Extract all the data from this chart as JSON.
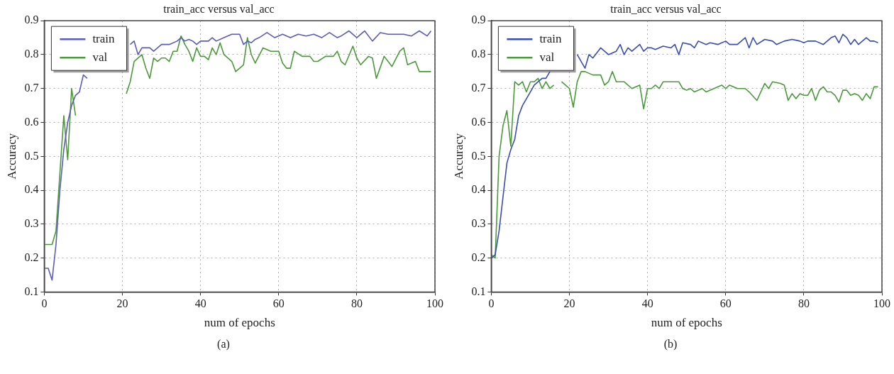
{
  "chart_data": [
    {
      "type": "line",
      "title": "train_acc versus val_acc",
      "xlabel": "num of epochs",
      "ylabel": "Accuracy",
      "xlim": [
        0,
        100
      ],
      "xticks": [
        0,
        20,
        40,
        60,
        80,
        100
      ],
      "ylim": [
        0.1,
        0.9
      ],
      "yticks": [
        0.1,
        0.2,
        0.3,
        0.4,
        0.5,
        0.6,
        0.7,
        0.8,
        0.9
      ],
      "grid": true,
      "legend": "top left",
      "line_style": "solid",
      "annotations": [
        "(a)"
      ],
      "series": [
        {
          "name": "train",
          "color": "#5b5bb8",
          "x": [
            0,
            1,
            2,
            3,
            4,
            5,
            6,
            7,
            8,
            9,
            10,
            11,
            12,
            13,
            14,
            15,
            16,
            17,
            18,
            20,
            22,
            23,
            24,
            25,
            27,
            28,
            30,
            32,
            34,
            35,
            36,
            37,
            38,
            39,
            40,
            42,
            43,
            44,
            46,
            48,
            50,
            51,
            52,
            53,
            54,
            55,
            57,
            59,
            61,
            63,
            65,
            67,
            69,
            71,
            73,
            75,
            76,
            78,
            80,
            82,
            84,
            86,
            88,
            90,
            92,
            94,
            96,
            98,
            99
          ],
          "values": [
            0.17,
            0.17,
            0.135,
            0.24,
            0.4,
            0.52,
            0.6,
            0.65,
            0.68,
            0.69,
            0.74,
            0.73,
            null,
            null,
            null,
            null,
            null,
            null,
            null,
            null,
            0.83,
            0.84,
            0.8,
            0.82,
            0.82,
            0.81,
            0.83,
            0.83,
            0.84,
            0.85,
            0.84,
            0.845,
            0.84,
            0.83,
            0.84,
            0.84,
            0.85,
            0.84,
            0.85,
            0.86,
            0.86,
            0.83,
            0.84,
            0.835,
            0.845,
            0.85,
            0.865,
            0.85,
            0.86,
            0.85,
            0.86,
            0.855,
            0.86,
            0.85,
            0.865,
            0.85,
            0.855,
            0.87,
            0.85,
            0.87,
            0.84,
            0.865,
            0.86,
            0.86,
            0.86,
            0.855,
            0.87,
            0.855,
            0.87
          ]
        },
        {
          "name": "val",
          "color": "#4a9a3a",
          "x": [
            0,
            2,
            3,
            4,
            5,
            6,
            7,
            8,
            9,
            10,
            12,
            14,
            16,
            18,
            20,
            21,
            22,
            23,
            25,
            26,
            27,
            28,
            29,
            30,
            31,
            32,
            33,
            34,
            35,
            36,
            37,
            38,
            39,
            40,
            41,
            42,
            43,
            44,
            45,
            46,
            48,
            49,
            51,
            52,
            53,
            54,
            56,
            58,
            60,
            61,
            62,
            63,
            64,
            66,
            68,
            69,
            70,
            72,
            74,
            75,
            76,
            77,
            79,
            80,
            81,
            83,
            84,
            85,
            87,
            88,
            89,
            91,
            92,
            93,
            95,
            96,
            98,
            99
          ],
          "values": [
            0.24,
            0.24,
            0.28,
            0.45,
            0.62,
            0.49,
            0.7,
            0.62,
            null,
            null,
            null,
            null,
            null,
            null,
            null,
            0.685,
            0.72,
            0.78,
            0.8,
            0.76,
            0.73,
            0.79,
            0.78,
            0.79,
            0.79,
            0.78,
            0.81,
            0.81,
            0.855,
            0.83,
            0.81,
            0.78,
            0.82,
            0.795,
            0.795,
            0.785,
            0.82,
            0.8,
            0.835,
            0.8,
            0.78,
            0.75,
            0.77,
            0.85,
            0.8,
            0.775,
            0.82,
            0.81,
            0.81,
            0.775,
            0.76,
            0.76,
            0.81,
            0.795,
            0.795,
            0.78,
            0.78,
            0.795,
            0.795,
            0.81,
            0.78,
            0.77,
            0.825,
            0.79,
            0.77,
            0.795,
            0.79,
            0.73,
            0.795,
            0.78,
            0.765,
            0.81,
            0.82,
            0.77,
            0.78,
            0.75,
            0.75,
            0.75
          ]
        }
      ]
    },
    {
      "type": "line",
      "title": "train_acc versus val_acc",
      "xlabel": "num of epochs",
      "ylabel": "Accuracy",
      "xlim": [
        0,
        100
      ],
      "xticks": [
        0,
        20,
        40,
        60,
        80,
        100
      ],
      "ylim": [
        0.1,
        0.9
      ],
      "yticks": [
        0.1,
        0.2,
        0.3,
        0.4,
        0.5,
        0.6,
        0.7,
        0.8,
        0.9
      ],
      "grid": true,
      "legend": "top left",
      "line_style": "solid",
      "annotations": [
        "(b)"
      ],
      "series": [
        {
          "name": "train",
          "color": "#3a4db0",
          "x": [
            0,
            1,
            2,
            3,
            4,
            5,
            6,
            7,
            8,
            9,
            10,
            11,
            12,
            13,
            14,
            15,
            16,
            17,
            18,
            19,
            20,
            22,
            23,
            24,
            25,
            26,
            28,
            30,
            32,
            33,
            34,
            35,
            36,
            38,
            39,
            40,
            41,
            42,
            44,
            46,
            47,
            48,
            49,
            51,
            52,
            53,
            55,
            56,
            58,
            60,
            61,
            63,
            65,
            66,
            67,
            68,
            70,
            72,
            73,
            75,
            77,
            79,
            80,
            81,
            83,
            85,
            87,
            88,
            89,
            90,
            91,
            92,
            93,
            94,
            96,
            97,
            98,
            99
          ],
          "values": [
            0.2,
            0.21,
            0.28,
            0.38,
            0.48,
            0.52,
            0.55,
            0.62,
            0.65,
            0.67,
            0.69,
            0.71,
            0.72,
            0.73,
            0.73,
            0.75,
            null,
            null,
            null,
            null,
            null,
            0.8,
            0.78,
            0.76,
            0.8,
            0.79,
            0.82,
            0.8,
            0.81,
            0.83,
            0.8,
            0.82,
            0.81,
            0.83,
            0.81,
            0.82,
            0.82,
            0.815,
            0.825,
            0.82,
            0.83,
            0.8,
            0.835,
            0.83,
            0.82,
            0.84,
            0.83,
            0.835,
            0.83,
            0.84,
            0.83,
            0.83,
            0.85,
            0.82,
            0.85,
            0.83,
            0.845,
            0.84,
            0.83,
            0.84,
            0.845,
            0.84,
            0.835,
            0.84,
            0.84,
            0.83,
            0.85,
            0.855,
            0.835,
            0.86,
            0.85,
            0.83,
            0.845,
            0.83,
            0.85,
            0.84,
            0.84,
            0.835
          ]
        },
        {
          "name": "val",
          "color": "#4a9a3a",
          "x": [
            0,
            1,
            2,
            3,
            4,
            5,
            6,
            7,
            8,
            9,
            10,
            11,
            12,
            13,
            14,
            15,
            16,
            17,
            18,
            19,
            20,
            21,
            22,
            23,
            24,
            26,
            28,
            29,
            30,
            31,
            32,
            34,
            36,
            38,
            39,
            40,
            41,
            42,
            43,
            44,
            46,
            48,
            49,
            50,
            51,
            52,
            54,
            55,
            57,
            59,
            60,
            61,
            63,
            65,
            66,
            68,
            70,
            71,
            72,
            74,
            75,
            76,
            77,
            78,
            79,
            80,
            81,
            82,
            83,
            84,
            85,
            86,
            87,
            88,
            89,
            90,
            91,
            92,
            93,
            94,
            95,
            96,
            97,
            98,
            99
          ],
          "values": [
            0.21,
            0.2,
            0.5,
            0.59,
            0.635,
            0.53,
            0.72,
            0.71,
            0.72,
            0.69,
            0.72,
            0.72,
            0.73,
            0.7,
            0.72,
            0.7,
            0.71,
            null,
            0.72,
            0.71,
            0.7,
            0.645,
            0.72,
            0.75,
            0.75,
            0.74,
            0.74,
            0.71,
            0.72,
            0.75,
            0.72,
            0.72,
            0.7,
            0.71,
            0.64,
            0.7,
            0.7,
            0.71,
            0.7,
            0.72,
            0.72,
            0.72,
            0.7,
            0.695,
            0.7,
            0.69,
            0.7,
            0.69,
            0.7,
            0.71,
            0.7,
            0.71,
            0.7,
            0.7,
            0.69,
            0.665,
            0.715,
            0.7,
            0.72,
            0.715,
            0.71,
            0.665,
            0.685,
            0.67,
            0.685,
            0.68,
            0.68,
            0.7,
            0.665,
            0.695,
            0.705,
            0.69,
            0.69,
            0.68,
            0.66,
            0.695,
            0.695,
            0.68,
            0.685,
            0.68,
            0.665,
            0.685,
            0.67,
            0.705,
            0.705
          ]
        }
      ]
    }
  ]
}
